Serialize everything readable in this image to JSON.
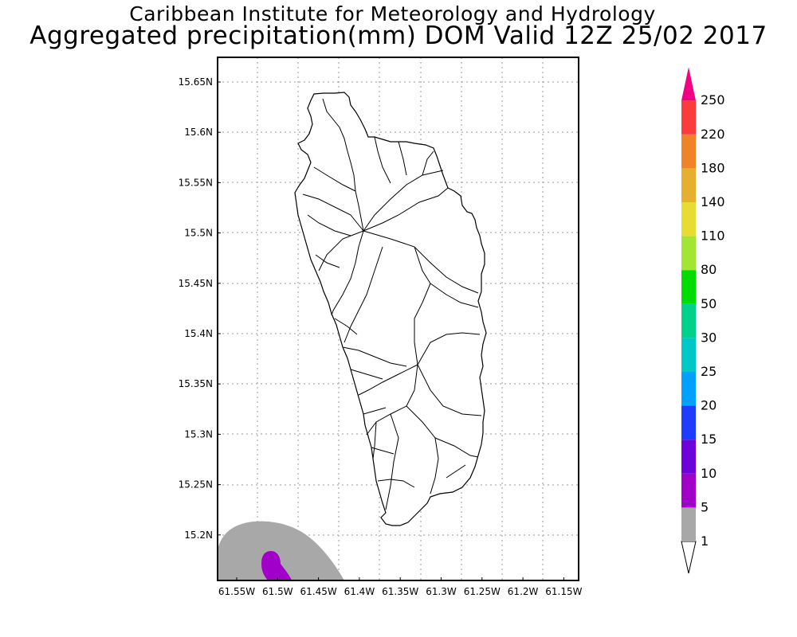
{
  "title": {
    "line1": "Caribbean Institute for Meteorology and Hydrology",
    "line2": "Aggregated precipitation(mm) DOM Valid 12Z 25/02 2017"
  },
  "map": {
    "lat_ticks": [
      "15.65N",
      "15.6N",
      "15.55N",
      "15.5N",
      "15.45N",
      "15.4N",
      "15.35N",
      "15.3N",
      "15.25N",
      "15.2N"
    ],
    "lon_ticks": [
      "61.55W",
      "61.5W",
      "61.45W",
      "61.4W",
      "61.35W",
      "61.3W",
      "61.25W",
      "61.2W",
      "61.15W"
    ],
    "extent": {
      "lon_west": -61.568,
      "lon_east": -61.13,
      "lat_south": 15.155,
      "lat_north": 15.68
    },
    "grid": "dotted",
    "features": [
      {
        "name": "Dominica island outline",
        "type": "coastline"
      },
      {
        "name": "watershed boundaries",
        "type": "internal-lines"
      },
      {
        "name": "precipitation 1-5 mm area",
        "color": "#a8a8a8"
      },
      {
        "name": "precipitation 5-10 mm area",
        "color": "#a000c8"
      }
    ]
  },
  "legend": {
    "bins": [
      {
        "label": "1",
        "color": "#a8a8a8"
      },
      {
        "label": "5",
        "color": "#a000c8"
      },
      {
        "label": "10",
        "color": "#6e00dc"
      },
      {
        "label": "15",
        "color": "#1e3cff"
      },
      {
        "label": "20",
        "color": "#00a0ff"
      },
      {
        "label": "25",
        "color": "#00c8c8"
      },
      {
        "label": "30",
        "color": "#00d28c"
      },
      {
        "label": "50",
        "color": "#00dc00"
      },
      {
        "label": "80",
        "color": "#a0e632"
      },
      {
        "label": "110",
        "color": "#e6dc32"
      },
      {
        "label": "140",
        "color": "#e6af2d"
      },
      {
        "label": "180",
        "color": "#f08228"
      },
      {
        "label": "220",
        "color": "#fa3c3c"
      },
      {
        "label": "250",
        "color": "#f00082"
      }
    ],
    "min_arrow_color": "#ffffff",
    "max_arrow_color": "#f00082"
  }
}
